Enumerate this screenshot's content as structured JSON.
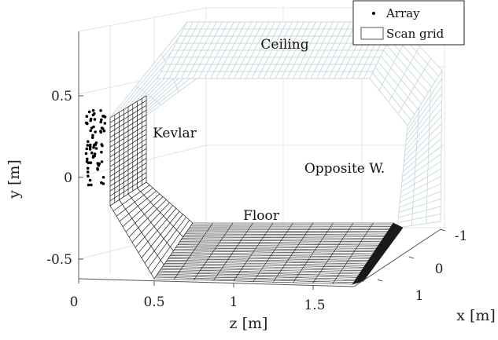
{
  "chart_data": {
    "type": "scatter",
    "title": "",
    "legend": {
      "placement": "top-right",
      "entries": [
        "Array",
        "Scan grid"
      ]
    },
    "axes": {
      "x": {
        "label": "x [m]",
        "ticks": [
          "-1",
          "0",
          "1"
        ],
        "range": [
          -1,
          1
        ]
      },
      "y": {
        "label": "y [m]",
        "ticks": [
          "0.5",
          "0",
          "-0.5"
        ],
        "range": [
          -0.6,
          0.6
        ]
      },
      "z": {
        "label": "z [m]",
        "ticks": [
          "0",
          "0.5",
          "1",
          "1.5"
        ],
        "range": [
          0,
          1.9
        ]
      }
    },
    "annotations": [
      "Ceiling",
      "Kevlar",
      "Opposite W.",
      "Floor"
    ],
    "grid": true,
    "series": [
      {
        "name": "Array",
        "marker": "dot",
        "color": "#000000"
      },
      {
        "name": "Scan grid",
        "marker": "surface-mesh",
        "color": "#d8e4ea"
      }
    ],
    "colors": {
      "mesh_light": "#c9d8de",
      "mesh_dark": "#1a1a1a",
      "grid": "#e2e2e2",
      "axis": "#555555"
    }
  }
}
